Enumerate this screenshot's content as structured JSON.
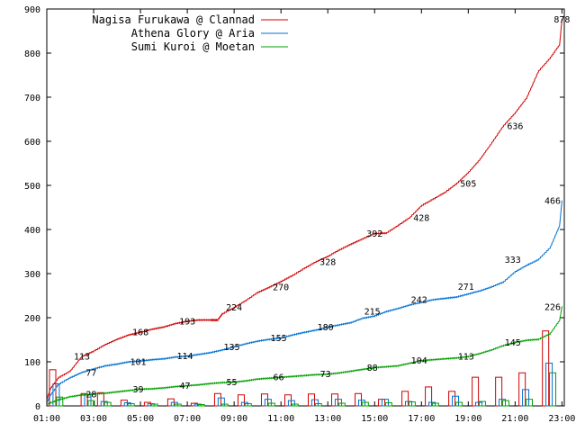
{
  "chart_data": {
    "type": "line",
    "x_ticks": [
      "01:00",
      "03:00",
      "05:00",
      "07:00",
      "09:00",
      "11:00",
      "13:00",
      "15:00",
      "17:00",
      "19:00",
      "21:00",
      "23:00"
    ],
    "y_ticks": [
      "0",
      "100",
      "200",
      "300",
      "400",
      "500",
      "600",
      "700",
      "800",
      "900"
    ],
    "ylim": [
      0,
      900
    ],
    "xlim_hours": [
      1,
      23.1
    ],
    "grid": false,
    "legend_position": "top-left",
    "colors": {
      "red": "#d00000",
      "blue": "#0070d0",
      "green": "#00a000"
    },
    "series": [
      {
        "name": "Nagisa Furukawa @ Clannad",
        "color": "#d00000",
        "x": [
          1.0,
          1.15,
          1.5,
          2.0,
          2.5,
          3.0,
          3.5,
          4.0,
          4.5,
          5.0,
          5.5,
          6.0,
          6.5,
          7.0,
          7.5,
          8.0,
          8.3,
          8.5,
          9.0,
          9.5,
          10.0,
          10.5,
          11.0,
          11.5,
          12.0,
          12.5,
          13.0,
          13.5,
          14.0,
          14.5,
          15.0,
          15.5,
          16.0,
          16.5,
          17.0,
          17.5,
          18.0,
          18.5,
          19.0,
          19.5,
          20.0,
          20.5,
          21.0,
          21.5,
          22.0,
          22.5,
          22.9,
          23.0
        ],
        "values": [
          15,
          40,
          65,
          80,
          113,
          125,
          140,
          152,
          162,
          168,
          175,
          180,
          188,
          193,
          196,
          196,
          196,
          210,
          224,
          240,
          258,
          270,
          283,
          297,
          313,
          328,
          340,
          355,
          368,
          380,
          392,
          393,
          410,
          428,
          455,
          470,
          485,
          505,
          530,
          560,
          597,
          636,
          665,
          700,
          760,
          790,
          820,
          878
        ],
        "labels": [
          {
            "x": 2.5,
            "y": 113,
            "text": "113"
          },
          {
            "x": 5.0,
            "y": 168,
            "text": "168"
          },
          {
            "x": 7.0,
            "y": 193,
            "text": "193"
          },
          {
            "x": 9.0,
            "y": 224,
            "text": "224"
          },
          {
            "x": 11.0,
            "y": 270,
            "text": "270"
          },
          {
            "x": 13.0,
            "y": 328,
            "text": "328"
          },
          {
            "x": 15.0,
            "y": 392,
            "text": "392"
          },
          {
            "x": 17.0,
            "y": 428,
            "text": "428"
          },
          {
            "x": 19.0,
            "y": 505,
            "text": "505"
          },
          {
            "x": 21.0,
            "y": 636,
            "text": "636"
          },
          {
            "x": 23.0,
            "y": 878,
            "text": "878"
          }
        ],
        "bars": [
          {
            "x": 1.25,
            "value": 82
          },
          {
            "x": 2.6,
            "value": 28
          },
          {
            "x": 3.3,
            "value": 30
          },
          {
            "x": 4.3,
            "value": 13
          },
          {
            "x": 5.3,
            "value": 8
          },
          {
            "x": 6.3,
            "value": 16
          },
          {
            "x": 7.3,
            "value": 6
          },
          {
            "x": 8.3,
            "value": 28
          },
          {
            "x": 9.3,
            "value": 25
          },
          {
            "x": 10.3,
            "value": 27
          },
          {
            "x": 11.3,
            "value": 25
          },
          {
            "x": 12.3,
            "value": 27
          },
          {
            "x": 13.3,
            "value": 27
          },
          {
            "x": 14.3,
            "value": 28
          },
          {
            "x": 15.3,
            "value": 15
          },
          {
            "x": 16.3,
            "value": 33
          },
          {
            "x": 17.3,
            "value": 43
          },
          {
            "x": 18.3,
            "value": 33
          },
          {
            "x": 19.3,
            "value": 65
          },
          {
            "x": 20.3,
            "value": 65
          },
          {
            "x": 21.3,
            "value": 75
          },
          {
            "x": 22.3,
            "value": 170
          }
        ]
      },
      {
        "name": "Athena Glory @ Aria",
        "color": "#0070d0",
        "x": [
          1.0,
          1.15,
          1.5,
          2.0,
          2.5,
          3.0,
          3.5,
          4.0,
          4.5,
          5.0,
          5.5,
          6.0,
          6.5,
          7.0,
          7.5,
          8.0,
          8.5,
          9.0,
          9.5,
          10.0,
          10.5,
          11.0,
          11.5,
          12.0,
          12.5,
          13.0,
          13.5,
          14.0,
          14.5,
          15.0,
          15.5,
          16.0,
          16.5,
          17.0,
          17.5,
          18.0,
          18.5,
          19.0,
          19.5,
          20.0,
          20.5,
          21.0,
          21.5,
          22.0,
          22.5,
          22.9,
          23.0
        ],
        "values": [
          8,
          25,
          50,
          65,
          77,
          85,
          92,
          96,
          101,
          103,
          106,
          108,
          112,
          114,
          118,
          122,
          128,
          135,
          142,
          148,
          152,
          155,
          162,
          168,
          173,
          180,
          185,
          190,
          200,
          205,
          215,
          222,
          230,
          236,
          242,
          245,
          248,
          255,
          262,
          271,
          282,
          305,
          320,
          333,
          360,
          410,
          466
        ],
        "labels": [
          {
            "x": 2.9,
            "y": 77,
            "text": "77"
          },
          {
            "x": 4.9,
            "y": 101,
            "text": "101"
          },
          {
            "x": 6.9,
            "y": 114,
            "text": "114"
          },
          {
            "x": 8.9,
            "y": 135,
            "text": "135"
          },
          {
            "x": 10.9,
            "y": 155,
            "text": "155"
          },
          {
            "x": 12.9,
            "y": 180,
            "text": "180"
          },
          {
            "x": 14.9,
            "y": 215,
            "text": "215"
          },
          {
            "x": 16.9,
            "y": 242,
            "text": "242"
          },
          {
            "x": 18.9,
            "y": 271,
            "text": "271"
          },
          {
            "x": 20.9,
            "y": 333,
            "text": "333"
          },
          {
            "x": 22.6,
            "y": 466,
            "text": "466"
          }
        ],
        "bars": [
          {
            "x": 1.4,
            "value": 50
          },
          {
            "x": 2.75,
            "value": 25
          },
          {
            "x": 3.45,
            "value": 10
          },
          {
            "x": 4.45,
            "value": 7
          },
          {
            "x": 5.45,
            "value": 5
          },
          {
            "x": 6.45,
            "value": 8
          },
          {
            "x": 7.45,
            "value": 4
          },
          {
            "x": 8.45,
            "value": 18
          },
          {
            "x": 9.45,
            "value": 8
          },
          {
            "x": 10.45,
            "value": 15
          },
          {
            "x": 11.45,
            "value": 12
          },
          {
            "x": 12.45,
            "value": 14
          },
          {
            "x": 13.45,
            "value": 15
          },
          {
            "x": 14.45,
            "value": 13
          },
          {
            "x": 15.45,
            "value": 15
          },
          {
            "x": 16.45,
            "value": 10
          },
          {
            "x": 17.45,
            "value": 8
          },
          {
            "x": 18.45,
            "value": 22
          },
          {
            "x": 19.45,
            "value": 8
          },
          {
            "x": 20.45,
            "value": 15
          },
          {
            "x": 21.45,
            "value": 37
          },
          {
            "x": 22.45,
            "value": 97
          }
        ]
      },
      {
        "name": "Sumi Kuroi @ Moetan",
        "color": "#00a000",
        "x": [
          1.0,
          1.5,
          2.0,
          2.5,
          3.0,
          3.5,
          4.0,
          4.5,
          5.0,
          5.5,
          6.0,
          6.5,
          7.0,
          7.5,
          8.0,
          8.5,
          9.0,
          9.5,
          10.0,
          10.5,
          11.0,
          11.5,
          12.0,
          12.5,
          13.0,
          13.5,
          14.0,
          14.5,
          15.0,
          15.5,
          16.0,
          16.5,
          17.0,
          17.5,
          18.0,
          18.5,
          19.0,
          19.5,
          20.0,
          20.5,
          21.0,
          21.5,
          22.0,
          22.5,
          22.9,
          23.0
        ],
        "values": [
          5,
          15,
          22,
          26,
          28,
          30,
          33,
          36,
          39,
          40,
          42,
          45,
          47,
          49,
          52,
          54,
          55,
          58,
          62,
          64,
          66,
          68,
          70,
          72,
          73,
          76,
          80,
          84,
          88,
          90,
          92,
          98,
          104,
          106,
          108,
          110,
          113,
          120,
          128,
          138,
          145,
          150,
          152,
          165,
          195,
          226
        ],
        "labels": [
          {
            "x": 2.9,
            "y": 28,
            "text": "28"
          },
          {
            "x": 4.9,
            "y": 39,
            "text": "39"
          },
          {
            "x": 6.9,
            "y": 47,
            "text": "47"
          },
          {
            "x": 8.9,
            "y": 55,
            "text": "55"
          },
          {
            "x": 10.9,
            "y": 66,
            "text": "66"
          },
          {
            "x": 12.9,
            "y": 73,
            "text": "73"
          },
          {
            "x": 14.9,
            "y": 88,
            "text": "88"
          },
          {
            "x": 16.9,
            "y": 104,
            "text": "104"
          },
          {
            "x": 18.9,
            "y": 113,
            "text": "113"
          },
          {
            "x": 20.9,
            "y": 145,
            "text": "145"
          },
          {
            "x": 22.6,
            "y": 226,
            "text": "226"
          }
        ],
        "bars": [
          {
            "x": 1.55,
            "value": 20
          },
          {
            "x": 2.9,
            "value": 12
          },
          {
            "x": 3.6,
            "value": 8
          },
          {
            "x": 4.6,
            "value": 5
          },
          {
            "x": 5.6,
            "value": 4
          },
          {
            "x": 6.6,
            "value": 4
          },
          {
            "x": 7.6,
            "value": 3
          },
          {
            "x": 8.6,
            "value": 4
          },
          {
            "x": 9.6,
            "value": 5
          },
          {
            "x": 10.6,
            "value": 6
          },
          {
            "x": 11.6,
            "value": 4
          },
          {
            "x": 12.6,
            "value": 5
          },
          {
            "x": 13.6,
            "value": 6
          },
          {
            "x": 14.6,
            "value": 8
          },
          {
            "x": 15.6,
            "value": 7
          },
          {
            "x": 16.6,
            "value": 9
          },
          {
            "x": 17.6,
            "value": 6
          },
          {
            "x": 18.6,
            "value": 8
          },
          {
            "x": 19.6,
            "value": 10
          },
          {
            "x": 20.6,
            "value": 12
          },
          {
            "x": 21.6,
            "value": 15
          },
          {
            "x": 22.6,
            "value": 75
          }
        ]
      }
    ]
  }
}
